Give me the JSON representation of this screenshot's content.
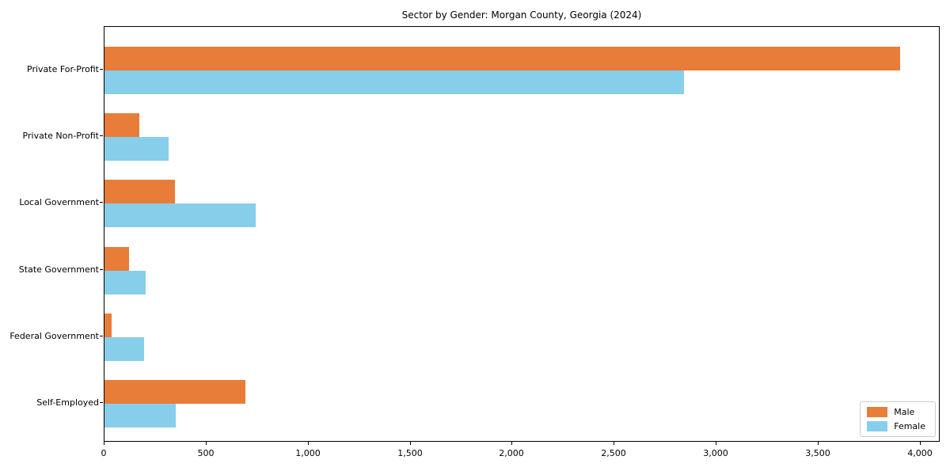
{
  "title": "Sector by Gender: Morgan County, Georgia (2024)",
  "chart_data": {
    "type": "bar",
    "orientation": "horizontal",
    "title": "Sector by Gender: Morgan County, Georgia (2024)",
    "categories": [
      "Private For-Profit",
      "Private Non-Profit",
      "Local Government",
      "State Government",
      "Federal Government",
      "Self-Employed"
    ],
    "series": [
      {
        "name": "Male",
        "color": "#e87d3a",
        "values": [
          3900,
          170,
          345,
          120,
          35,
          690
        ]
      },
      {
        "name": "Female",
        "color": "#87ceeb",
        "values": [
          2840,
          315,
          740,
          200,
          195,
          350
        ]
      }
    ],
    "xlabel": "",
    "ylabel": "",
    "xlim": [
      0,
      4000
    ],
    "xticks": [
      0,
      500,
      1000,
      1500,
      2000,
      2500,
      3000,
      3500,
      4000
    ],
    "xtick_labels": [
      "0",
      "500",
      "1,000",
      "1,500",
      "2,000",
      "2,500",
      "3,000",
      "3,500",
      "4,000"
    ],
    "grid": false,
    "legend_position": "lower right"
  }
}
